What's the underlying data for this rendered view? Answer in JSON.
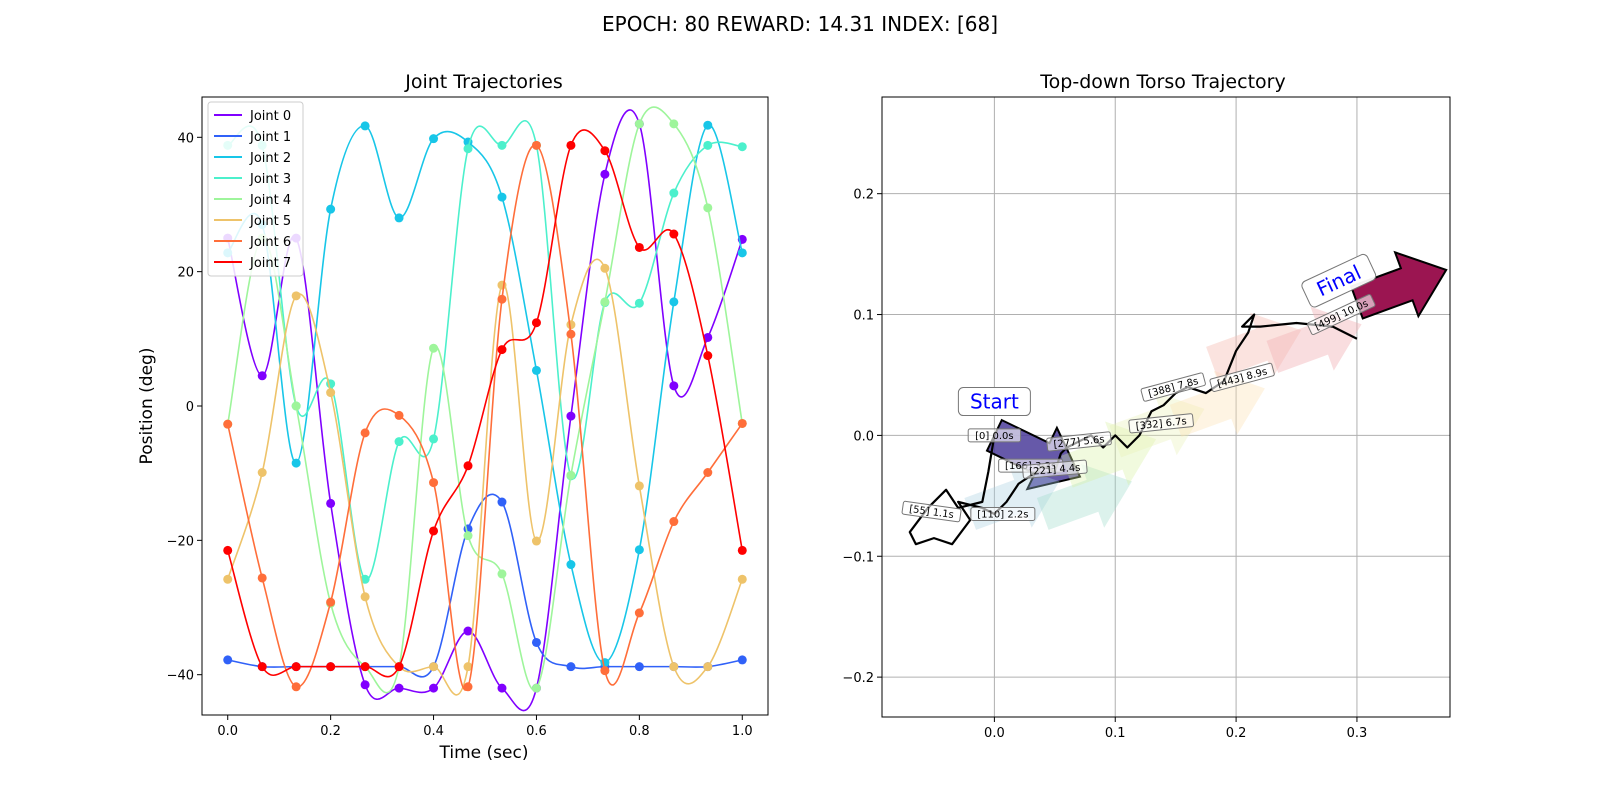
{
  "figure_title": "EPOCH:  80 REWARD:  14.31 INDEX: [68]",
  "chart_data": [
    {
      "type": "line",
      "title": "Joint Trajectories",
      "xlabel": "Time (sec)",
      "ylabel": "Position (deg)",
      "xlim": [
        -0.05,
        1.05
      ],
      "ylim": [
        -46,
        46
      ],
      "xticks": [
        "0.0",
        "0.2",
        "0.4",
        "0.6",
        "0.8",
        "1.0"
      ],
      "yticks": [
        "-40",
        "-20",
        "0",
        "20",
        "40"
      ],
      "legend_position": "top-left",
      "x": [
        0.0,
        0.067,
        0.133,
        0.2,
        0.267,
        0.333,
        0.4,
        0.467,
        0.533,
        0.6,
        0.667,
        0.733,
        0.8,
        0.867,
        0.933,
        1.0
      ],
      "series": [
        {
          "name": "Joint 0",
          "color": "#8000ff",
          "values": [
            25,
            4.5,
            25,
            -14.5,
            -41.5,
            -42,
            -42,
            -33.5,
            -42,
            -42,
            -1.5,
            34.5,
            42,
            3,
            10.2,
            24.8
          ]
        },
        {
          "name": "Joint 1",
          "color": "#3061f8",
          "values": [
            -37.8,
            -38.8,
            -38.8,
            -38.8,
            -38.8,
            -38.8,
            -38.8,
            -18.3,
            -14.3,
            -35.2,
            -38.8,
            -38.8,
            -38.8,
            -38.8,
            -38.8,
            -37.8
          ]
        },
        {
          "name": "Joint 2",
          "color": "#18c6e8",
          "values": [
            22.8,
            27,
            -8.5,
            29.3,
            41.7,
            28,
            39.8,
            39.3,
            31.1,
            5.3,
            -23.6,
            -38.2,
            -21.4,
            15.5,
            41.8,
            22.8
          ]
        },
        {
          "name": "Joint 3",
          "color": "#4cf0cc",
          "values": [
            38.8,
            38.8,
            0,
            3.3,
            -25.8,
            -5.3,
            -4.9,
            38.3,
            38.8,
            38.8,
            -10.4,
            15.4,
            15.3,
            31.7,
            38.8,
            38.6
          ]
        },
        {
          "name": "Joint 4",
          "color": "#9ef59b",
          "values": [
            -2.7,
            25,
            0,
            -29.4,
            -38.8,
            -38.8,
            8.6,
            -19.3,
            -25.0,
            -42,
            -10.3,
            15.5,
            42,
            42,
            29.5,
            -2.6
          ]
        },
        {
          "name": "Joint 5",
          "color": "#eec36a",
          "values": [
            -25.8,
            -9.9,
            16.4,
            2,
            -28.4,
            -38.8,
            -38.8,
            -38.8,
            18,
            -20.1,
            12.1,
            20.5,
            -11.9,
            -38.8,
            -38.8,
            -25.8
          ]
        },
        {
          "name": "Joint 6",
          "color": "#ff6e3a",
          "values": [
            -2.7,
            -25.6,
            -41.8,
            -29.2,
            -4,
            -1.4,
            -11.4,
            -41.8,
            15.9,
            38.8,
            10.7,
            -39.4,
            -30.8,
            -17.2,
            -9.9,
            -2.6
          ]
        },
        {
          "name": "Joint 7",
          "color": "#ff0000",
          "values": [
            -21.5,
            -38.8,
            -38.8,
            -38.8,
            -38.8,
            -38.8,
            -18.6,
            -8.9,
            8.4,
            12.4,
            38.8,
            38.0,
            23.6,
            25.6,
            7.5,
            -21.5
          ]
        }
      ]
    },
    {
      "type": "line",
      "title": "Top-down Torso Trajectory",
      "xlim": [
        -0.093,
        0.377
      ],
      "ylim": [
        -0.233,
        0.28
      ],
      "xticks": [
        "0.0",
        "0.1",
        "0.2",
        "0.3"
      ],
      "yticks": [
        "-0.2",
        "-0.1",
        "0.0",
        "0.1",
        "0.2"
      ],
      "grid": true,
      "path": [
        [
          0.0,
          0.0
        ],
        [
          -0.005,
          -0.03
        ],
        [
          -0.01,
          -0.055
        ],
        [
          -0.03,
          -0.06
        ],
        [
          -0.04,
          -0.045
        ],
        [
          -0.055,
          -0.06
        ],
        [
          -0.07,
          -0.08
        ],
        [
          -0.065,
          -0.09
        ],
        [
          -0.05,
          -0.085
        ],
        [
          -0.035,
          -0.09
        ],
        [
          -0.02,
          -0.07
        ],
        [
          -0.03,
          -0.055
        ],
        [
          -0.01,
          -0.06
        ],
        [
          0.0,
          -0.065
        ],
        [
          0.01,
          -0.055
        ],
        [
          0.02,
          -0.04
        ],
        [
          0.035,
          -0.03
        ],
        [
          0.04,
          -0.025
        ],
        [
          0.05,
          -0.03
        ],
        [
          0.055,
          -0.015
        ],
        [
          0.06,
          -0.01
        ],
        [
          0.07,
          -0.005
        ],
        [
          0.08,
          0.0
        ],
        [
          0.09,
          -0.01
        ],
        [
          0.095,
          -0.005
        ],
        [
          0.1,
          0.0
        ],
        [
          0.11,
          -0.01
        ],
        [
          0.12,
          0.0
        ],
        [
          0.13,
          0.02
        ],
        [
          0.14,
          0.025
        ],
        [
          0.15,
          0.035
        ],
        [
          0.16,
          0.04
        ],
        [
          0.175,
          0.035
        ],
        [
          0.19,
          0.045
        ],
        [
          0.2,
          0.07
        ],
        [
          0.21,
          0.085
        ],
        [
          0.215,
          0.1
        ],
        [
          0.205,
          0.09
        ],
        [
          0.22,
          0.09
        ],
        [
          0.25,
          0.093
        ],
        [
          0.28,
          0.09
        ],
        [
          0.3,
          0.08
        ]
      ],
      "arrows": [
        {
          "x": 0.0,
          "y": 0.0,
          "color": "#4b3c9a",
          "alpha": 0.85
        },
        {
          "x": -0.02,
          "y": -0.065,
          "color": "#a6cde0",
          "alpha": 0.35
        },
        {
          "x": 0.04,
          "y": -0.065,
          "color": "#9cd9c8",
          "alpha": 0.35
        },
        {
          "x": 0.06,
          "y": -0.03,
          "color": "#d7f0a0",
          "alpha": 0.35
        },
        {
          "x": 0.1,
          "y": -0.005,
          "color": "#e9f2b5",
          "alpha": 0.35
        },
        {
          "x": 0.15,
          "y": 0.012,
          "color": "#fde0b0",
          "alpha": 0.35
        },
        {
          "x": 0.18,
          "y": 0.06,
          "color": "#f7c2b8",
          "alpha": 0.45
        },
        {
          "x": 0.23,
          "y": 0.065,
          "color": "#f1b3b8",
          "alpha": 0.45
        },
        {
          "x": 0.3,
          "y": 0.11,
          "color": "#9b1551",
          "alpha": 1.0
        }
      ],
      "annotations": [
        {
          "text": "Start",
          "x": 0.0,
          "y": 0.028,
          "color": "#0000ff",
          "big": true
        },
        {
          "text": "Final",
          "x": 0.285,
          "y": 0.128,
          "color": "#0000ff",
          "big": true,
          "rot": -25
        },
        {
          "text": "[0] 0.0s",
          "x": 0.0,
          "y": 0.0
        },
        {
          "text": "[55] 1.1s",
          "x": -0.052,
          "y": -0.063,
          "rot": 8
        },
        {
          "text": "[110] 2.2s",
          "x": 0.007,
          "y": -0.065
        },
        {
          "text": "[166] 3.3s",
          "x": 0.03,
          "y": -0.025
        },
        {
          "text": "[221] 4.4s",
          "x": 0.05,
          "y": -0.028,
          "rot": -5
        },
        {
          "text": "[277] 5.6s",
          "x": 0.07,
          "y": -0.005,
          "rot": -6
        },
        {
          "text": "[332] 6.7s",
          "x": 0.138,
          "y": 0.01,
          "rot": -6
        },
        {
          "text": "[388] 7.8s",
          "x": 0.148,
          "y": 0.04,
          "rot": -15
        },
        {
          "text": "[443] 8.9s",
          "x": 0.205,
          "y": 0.048,
          "rot": -15
        },
        {
          "text": "[499] 10.0s",
          "x": 0.287,
          "y": 0.1,
          "rot": -25
        }
      ]
    }
  ]
}
